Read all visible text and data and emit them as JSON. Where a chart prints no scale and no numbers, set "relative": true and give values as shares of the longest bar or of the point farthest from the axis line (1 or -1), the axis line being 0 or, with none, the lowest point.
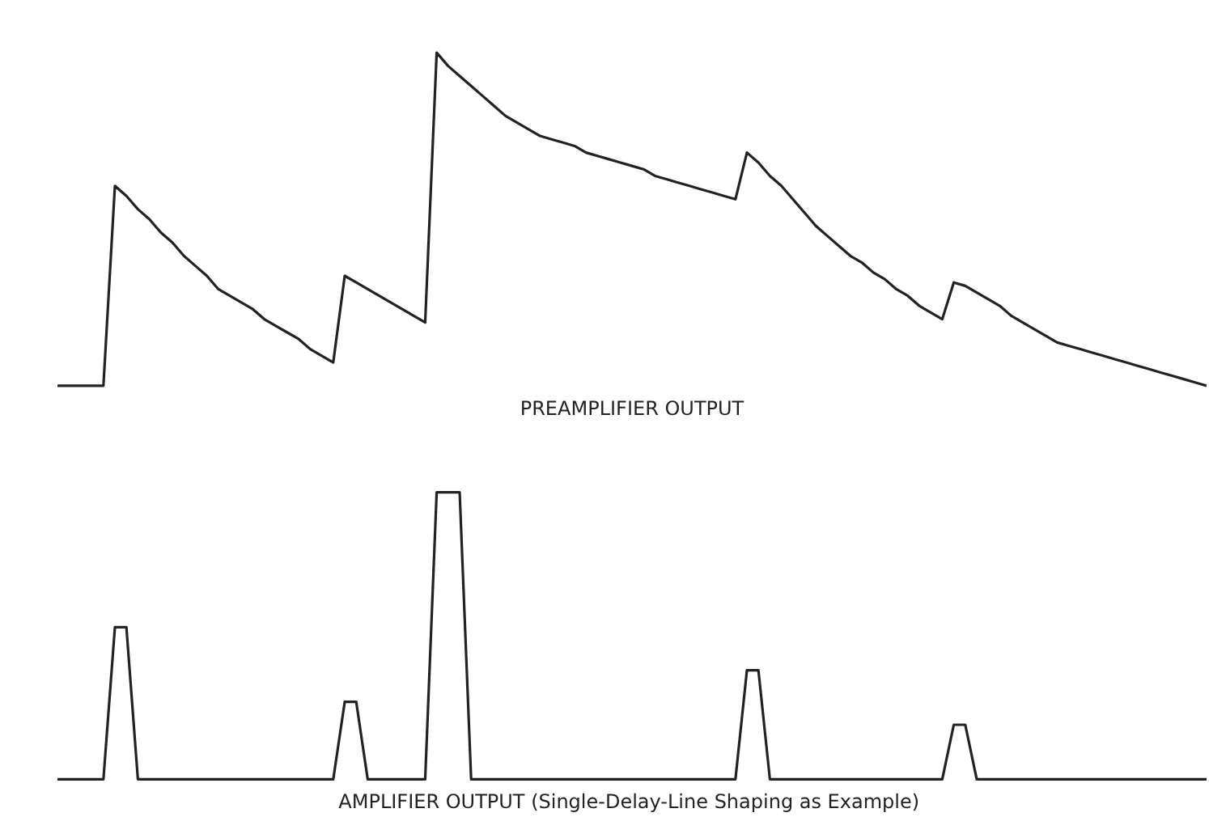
{
  "chart_data": [
    {
      "type": "line",
      "relative": true,
      "xlabel": "PREAMPLIFIER OUTPUT",
      "grid": false,
      "categories": [
        null,
        null,
        null,
        null,
        null,
        null,
        null,
        null,
        null,
        null,
        null,
        null,
        null,
        null,
        null,
        null,
        null,
        null,
        null,
        null,
        null,
        null,
        null,
        null,
        null,
        null,
        null,
        null,
        null,
        null,
        null,
        null,
        null,
        null,
        null,
        null,
        null,
        null,
        null,
        null,
        null,
        null,
        null,
        null,
        null,
        null,
        null,
        null,
        null,
        null,
        null,
        null,
        null,
        null,
        null,
        null,
        null,
        null,
        null,
        null,
        null,
        null,
        null,
        null,
        null,
        null,
        null,
        null,
        null,
        null,
        null,
        null,
        null,
        null,
        null,
        null,
        null,
        null,
        null,
        null,
        null,
        null,
        null,
        null,
        null,
        null,
        null,
        null,
        null,
        null,
        null,
        null,
        null,
        null,
        null,
        null,
        null,
        null,
        null,
        null,
        null
      ],
      "series": [
        {
          "color": "#222222",
          "values": [
            0,
            0,
            0,
            0,
            0,
            0.6,
            0.57,
            0.53,
            0.5,
            0.46,
            0.43,
            0.39,
            0.36,
            0.33,
            0.29,
            0.27,
            0.25,
            0.23,
            0.2,
            0.18,
            0.16,
            0.14,
            0.11,
            0.09,
            0.07,
            0.33,
            0.31,
            0.29,
            0.27,
            0.25,
            0.23,
            0.21,
            0.19,
            1.0,
            0.96,
            0.93,
            0.9,
            0.87,
            0.84,
            0.81,
            0.79,
            0.77,
            0.75,
            0.74,
            0.73,
            0.72,
            0.7,
            0.69,
            0.68,
            0.67,
            0.66,
            0.65,
            0.63,
            0.62,
            0.61,
            0.6,
            0.59,
            0.58,
            0.57,
            0.56,
            0.7,
            0.67,
            0.63,
            0.6,
            0.56,
            0.52,
            0.48,
            0.45,
            0.42,
            0.39,
            0.37,
            0.34,
            0.32,
            0.29,
            0.27,
            0.24,
            0.22,
            0.2,
            0.31,
            0.3,
            0.28,
            0.26,
            0.24,
            0.21,
            0.19,
            0.17,
            0.15,
            0.13,
            0.12,
            0.11,
            0.1,
            0.09,
            0.08,
            0.07,
            0.06,
            0.05,
            0.04,
            0.03,
            0.02,
            0.01,
            0
          ]
        }
      ]
    },
    {
      "type": "line",
      "relative": true,
      "xlabel": "AMPLIFIER OUTPUT  (Single-Delay-Line Shaping as Example)",
      "grid": false,
      "categories": [
        null,
        null,
        null,
        null,
        null,
        null,
        null,
        null,
        null,
        null,
        null,
        null,
        null,
        null,
        null,
        null,
        null,
        null,
        null,
        null,
        null,
        null,
        null,
        null,
        null,
        null,
        null,
        null,
        null,
        null,
        null,
        null,
        null,
        null,
        null,
        null,
        null,
        null,
        null,
        null,
        null,
        null,
        null,
        null,
        null,
        null,
        null,
        null,
        null,
        null,
        null,
        null,
        null,
        null,
        null,
        null,
        null,
        null,
        null,
        null,
        null,
        null,
        null,
        null,
        null,
        null,
        null,
        null,
        null,
        null,
        null,
        null,
        null,
        null,
        null,
        null,
        null,
        null,
        null,
        null,
        null,
        null,
        null,
        null,
        null,
        null,
        null,
        null,
        null,
        null,
        null,
        null,
        null,
        null,
        null,
        null,
        null,
        null,
        null,
        null,
        null
      ],
      "series": [
        {
          "color": "#222222",
          "values": [
            0,
            0,
            0,
            0,
            0,
            0.53,
            0.53,
            0,
            0,
            0,
            0,
            0,
            0,
            0,
            0,
            0,
            0,
            0,
            0,
            0,
            0,
            0,
            0,
            0,
            0,
            0.27,
            0.27,
            0,
            0,
            0,
            0,
            0,
            0,
            1.0,
            1.0,
            1.0,
            0,
            0,
            0,
            0,
            0,
            0,
            0,
            0,
            0,
            0,
            0,
            0,
            0,
            0,
            0,
            0,
            0,
            0,
            0,
            0,
            0,
            0,
            0,
            0,
            0.38,
            0.38,
            0,
            0,
            0,
            0,
            0,
            0,
            0,
            0,
            0,
            0,
            0,
            0,
            0,
            0,
            0,
            0,
            0.19,
            0.19,
            0,
            0,
            0,
            0,
            0,
            0,
            0,
            0,
            0,
            0,
            0,
            0,
            0,
            0,
            0,
            0,
            0,
            0,
            0,
            0,
            0
          ]
        }
      ]
    }
  ]
}
